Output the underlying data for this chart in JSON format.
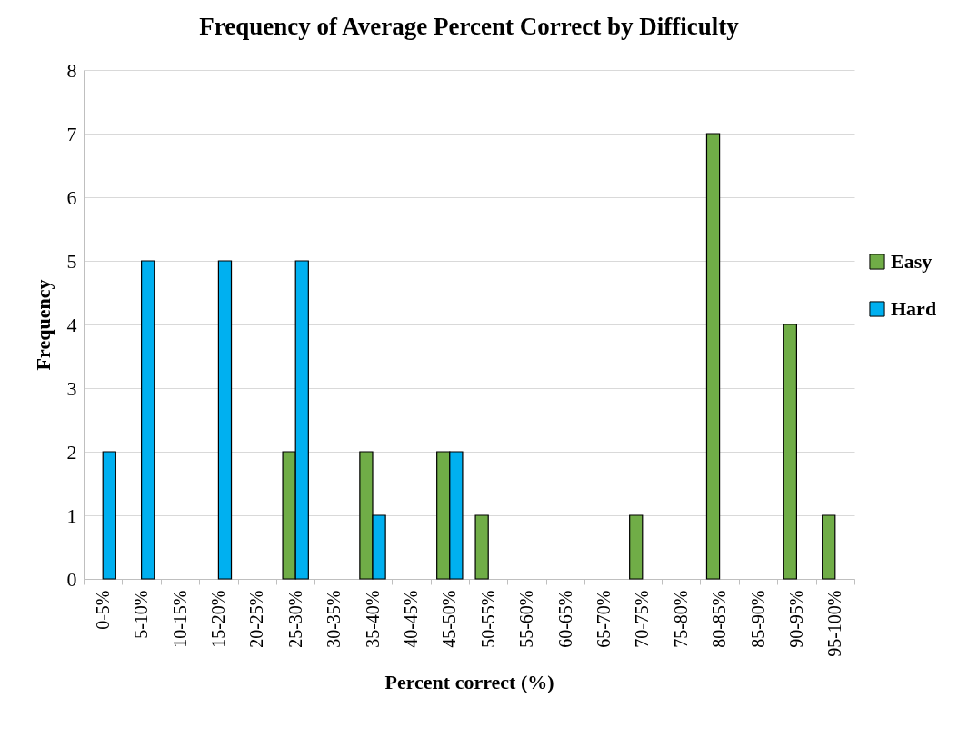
{
  "chart_data": {
    "type": "bar",
    "title": "Frequency of  Average Percent Correct by Difficulty",
    "xlabel": "Percent correct (%)",
    "ylabel": "Frequency",
    "categories": [
      "0-5%",
      "5-10%",
      "10-15%",
      "15-20%",
      "20-25%",
      "25-30%",
      "30-35%",
      "35-40%",
      "40-45%",
      "45-50%",
      "50-55%",
      "55-60%",
      "60-65%",
      "65-70%",
      "70-75%",
      "75-80%",
      "80-85%",
      "85-90%",
      "90-95%",
      "95-100%"
    ],
    "series": [
      {
        "name": "Easy",
        "color": "#70ad47",
        "values": [
          0,
          0,
          0,
          0,
          0,
          2,
          0,
          2,
          0,
          2,
          1,
          0,
          0,
          0,
          1,
          0,
          7,
          0,
          4,
          1
        ]
      },
      {
        "name": "Hard",
        "color": "#00b0f0",
        "values": [
          2,
          5,
          0,
          5,
          0,
          5,
          0,
          1,
          0,
          2,
          0,
          0,
          0,
          0,
          0,
          0,
          0,
          0,
          0,
          0
        ]
      }
    ],
    "ylim": [
      0,
      8
    ],
    "yticks": [
      0,
      1,
      2,
      3,
      4,
      5,
      6,
      7,
      8
    ],
    "grid": "y",
    "legend": "right"
  }
}
